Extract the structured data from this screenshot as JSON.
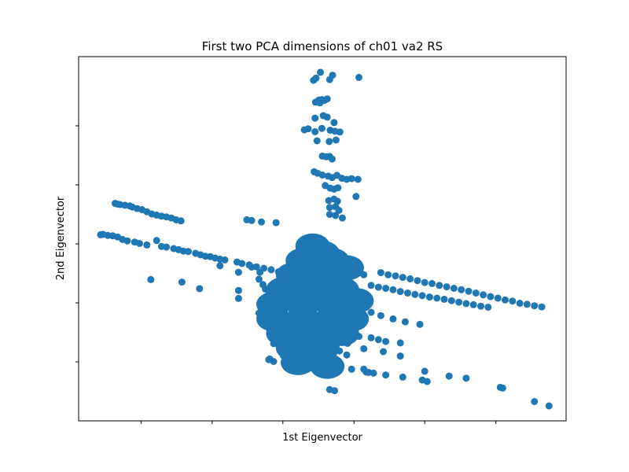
{
  "chart_data": {
    "type": "scatter",
    "title": "First two PCA dimensions of ch01 va2 RS",
    "xlabel": "1st Eigenvector",
    "ylabel": "2nd Eigenvector",
    "xlim": [
      0,
      100
    ],
    "ylim": [
      0,
      100
    ],
    "grid": false,
    "legend": "none",
    "color": "#1f77b4",
    "x_ticks": [
      12.8,
      27.4,
      41.9,
      56.5,
      71.0,
      85.6
    ],
    "y_ticks": [
      16.2,
      32.4,
      48.6,
      64.8,
      81.0
    ],
    "series": [
      {
        "points": [
          [
            4.5,
            51.1
          ],
          [
            5.0,
            51.2
          ],
          [
            6.0,
            50.9
          ],
          [
            7.0,
            50.8
          ],
          [
            8.0,
            50.5
          ],
          [
            9.0,
            49.8
          ],
          [
            10.0,
            49.4
          ],
          [
            11.5,
            49.1
          ],
          [
            12.5,
            48.7
          ],
          [
            14.0,
            48.3
          ],
          [
            16.0,
            49.5
          ],
          [
            17.0,
            47.9
          ],
          [
            18.0,
            47.7
          ],
          [
            19.5,
            47.3
          ],
          [
            20.5,
            47.0
          ],
          [
            21.5,
            46.6
          ],
          [
            22.5,
            46.5
          ],
          [
            24.0,
            46.0
          ],
          [
            25.0,
            45.6
          ],
          [
            26.0,
            45.2
          ],
          [
            27.0,
            45.1
          ],
          [
            28.0,
            44.7
          ],
          [
            29.0,
            44.4
          ],
          [
            30.0,
            44.2
          ],
          [
            32.5,
            43.6
          ],
          [
            33.5,
            43.2
          ],
          [
            35.0,
            42.8
          ],
          [
            36.5,
            42.3
          ],
          [
            38.0,
            41.9
          ],
          [
            39.5,
            41.5
          ],
          [
            41.0,
            40.9
          ],
          [
            7.5,
            59.7
          ],
          [
            8.0,
            59.5
          ],
          [
            8.5,
            59.4
          ],
          [
            9.5,
            59.2
          ],
          [
            10.5,
            59.0
          ],
          [
            11.0,
            58.7
          ],
          [
            12.0,
            58.3
          ],
          [
            13.0,
            58.0
          ],
          [
            14.0,
            57.4
          ],
          [
            15.0,
            56.8
          ],
          [
            16.0,
            56.5
          ],
          [
            17.0,
            56.2
          ],
          [
            18.0,
            56.0
          ],
          [
            19.0,
            55.7
          ],
          [
            20.0,
            55.2
          ],
          [
            21.0,
            54.9
          ],
          [
            34.5,
            55.2
          ],
          [
            35.5,
            55.0
          ],
          [
            37.5,
            54.6
          ],
          [
            40.5,
            54.4
          ],
          [
            14.8,
            38.8
          ],
          [
            21.2,
            38.1
          ],
          [
            24.8,
            36.3
          ],
          [
            32.8,
            35.8
          ],
          [
            32.8,
            33.6
          ],
          [
            29.0,
            42.6
          ],
          [
            32.8,
            40.8
          ],
          [
            35.5,
            42.2
          ],
          [
            62.0,
            40.7
          ],
          [
            63.5,
            40.1
          ],
          [
            65.0,
            39.8
          ],
          [
            66.5,
            39.4
          ],
          [
            68.0,
            39.0
          ],
          [
            69.5,
            38.5
          ],
          [
            71.0,
            38.0
          ],
          [
            72.5,
            37.7
          ],
          [
            74.0,
            37.2
          ],
          [
            75.5,
            36.8
          ],
          [
            77.0,
            36.4
          ],
          [
            78.5,
            36.0
          ],
          [
            80.0,
            35.6
          ],
          [
            81.5,
            35.1
          ],
          [
            83.0,
            34.6
          ],
          [
            84.5,
            34.1
          ],
          [
            86.0,
            33.7
          ],
          [
            87.5,
            33.2
          ],
          [
            89.0,
            32.9
          ],
          [
            90.5,
            32.3
          ],
          [
            92.0,
            32.0
          ],
          [
            93.5,
            31.6
          ],
          [
            95.0,
            31.3
          ],
          [
            60.0,
            37.2
          ],
          [
            61.5,
            36.7
          ],
          [
            63.0,
            36.4
          ],
          [
            64.5,
            36.0
          ],
          [
            66.0,
            35.5
          ],
          [
            67.5,
            35.1
          ],
          [
            69.0,
            34.7
          ],
          [
            70.5,
            34.4
          ],
          [
            72.0,
            34.0
          ],
          [
            73.5,
            33.7
          ],
          [
            75.0,
            33.4
          ],
          [
            76.5,
            33.0
          ],
          [
            78.0,
            32.6
          ],
          [
            79.5,
            32.2
          ],
          [
            81.0,
            31.9
          ],
          [
            82.5,
            31.5
          ],
          [
            84.0,
            31.2
          ],
          [
            58.0,
            30.8
          ],
          [
            60.0,
            29.8
          ],
          [
            62.0,
            28.9
          ],
          [
            64.5,
            28.0
          ],
          [
            67.0,
            27.2
          ],
          [
            70.0,
            26.5
          ],
          [
            55.2,
            21.3
          ],
          [
            58.5,
            19.8
          ],
          [
            62.5,
            19.0
          ],
          [
            66.0,
            17.8
          ],
          [
            71.0,
            13.6
          ],
          [
            76.0,
            12.3
          ],
          [
            79.5,
            11.7
          ],
          [
            86.5,
            9.2
          ],
          [
            87.0,
            9.0
          ],
          [
            93.5,
            5.3
          ],
          [
            96.5,
            4.1
          ],
          [
            56.0,
            14.2
          ],
          [
            59.0,
            13.4
          ],
          [
            60.5,
            13.1
          ],
          [
            63.0,
            12.6
          ],
          [
            66.5,
            12.0
          ],
          [
            70.5,
            11.2
          ],
          [
            71.5,
            10.8
          ],
          [
            54.0,
            24.5
          ],
          [
            57.5,
            23.2
          ],
          [
            60.0,
            22.8
          ],
          [
            61.5,
            22.3
          ],
          [
            63.0,
            21.8
          ],
          [
            66.0,
            21.4
          ],
          [
            45.0,
            19.1
          ],
          [
            46.5,
            19.3
          ],
          [
            53.5,
            19.2
          ],
          [
            55.0,
            18.1
          ],
          [
            58.5,
            14.2
          ],
          [
            59.5,
            13.3
          ],
          [
            42.0,
            17.9
          ],
          [
            40.0,
            16.3
          ],
          [
            39.2,
            17.0
          ],
          [
            39.0,
            16.8
          ],
          [
            51.5,
            8.6
          ],
          [
            52.5,
            8.3
          ],
          [
            52.0,
            27.7
          ],
          [
            51.0,
            26.5
          ],
          [
            50.5,
            26.0
          ],
          [
            47.0,
            46.5
          ],
          [
            48.5,
            46.2
          ],
          [
            49.5,
            44.9
          ],
          [
            50.5,
            45.6
          ],
          [
            51.5,
            44.2
          ],
          [
            53.0,
            43.1
          ],
          [
            54.5,
            42.4
          ],
          [
            56.0,
            41.3
          ],
          [
            57.5,
            40.6
          ],
          [
            58.5,
            40.1
          ],
          [
            49.0,
            34.0
          ],
          [
            51.5,
            33.5
          ],
          [
            53.0,
            32.9
          ],
          [
            54.5,
            32.0
          ],
          [
            56.5,
            31.1
          ],
          [
            58.0,
            30.8
          ],
          [
            52.0,
            38.4
          ],
          [
            54.5,
            37.3
          ],
          [
            56.8,
            36.4
          ],
          [
            37.2,
            40.8
          ],
          [
            37.0,
            38.9
          ],
          [
            37.8,
            37.4
          ],
          [
            38.3,
            36.2
          ],
          [
            39.0,
            34.9
          ],
          [
            37.0,
            29.6
          ],
          [
            37.5,
            28.2
          ],
          [
            38.5,
            27.8
          ],
          [
            39.5,
            27.3
          ],
          [
            40.5,
            26.4
          ],
          [
            40.0,
            21.2
          ],
          [
            41.0,
            20.8
          ],
          [
            42.0,
            20.1
          ],
          [
            43.0,
            19.9
          ],
          [
            48.2,
            93.5
          ],
          [
            48.7,
            94.1
          ],
          [
            49.6,
            95.7
          ],
          [
            51.5,
            93.7
          ],
          [
            52.1,
            94.9
          ],
          [
            57.5,
            94.3
          ],
          [
            48.6,
            87.5
          ],
          [
            49.3,
            88.1
          ],
          [
            49.9,
            88.2
          ],
          [
            50.4,
            88.0
          ],
          [
            51.0,
            88.4
          ],
          [
            49.5,
            87.3
          ],
          [
            48.5,
            83.1
          ],
          [
            50.2,
            83.8
          ],
          [
            51.0,
            83.4
          ],
          [
            52.4,
            81.9
          ],
          [
            46.3,
            79.9
          ],
          [
            47.1,
            80.2
          ],
          [
            48.5,
            79.4
          ],
          [
            49.9,
            80.3
          ],
          [
            51.6,
            79.8
          ],
          [
            52.6,
            79.5
          ],
          [
            53.6,
            79.3
          ],
          [
            48.9,
            76.9
          ],
          [
            51.4,
            76.7
          ],
          [
            52.8,
            77.1
          ],
          [
            50.0,
            72.7
          ],
          [
            50.8,
            72.5
          ],
          [
            51.5,
            72.6
          ],
          [
            52.0,
            71.9
          ],
          [
            48.3,
            68.4
          ],
          [
            49.0,
            68.0
          ],
          [
            50.0,
            67.5
          ],
          [
            51.2,
            67.2
          ],
          [
            52.0,
            66.8
          ],
          [
            53.0,
            67.4
          ],
          [
            54.0,
            66.6
          ],
          [
            55.0,
            66.3
          ],
          [
            56.0,
            66.5
          ],
          [
            57.3,
            66.3
          ],
          [
            50.6,
            64.6
          ],
          [
            51.6,
            63.9
          ],
          [
            52.4,
            63.6
          ],
          [
            53.2,
            64.0
          ],
          [
            56.9,
            61.6
          ],
          [
            51.3,
            60.5
          ],
          [
            52.4,
            60.9
          ],
          [
            53.1,
            60.3
          ],
          [
            52.7,
            58.8
          ],
          [
            51.5,
            58.6
          ],
          [
            53.4,
            57.8
          ],
          [
            51.5,
            56.7
          ],
          [
            52.7,
            56.4
          ],
          [
            54.1,
            55.7
          ]
        ]
      }
    ]
  }
}
